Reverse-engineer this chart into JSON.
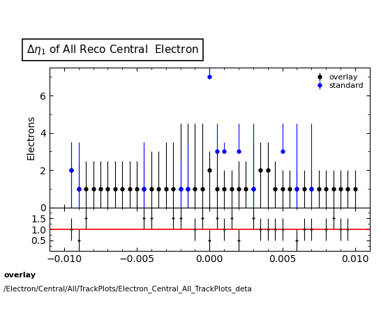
{
  "title": "$\\Delta\\eta_1$ of All Reco Central  Electron",
  "ylabel_main": "Electrons",
  "xlim": [
    -0.011,
    0.011
  ],
  "ylim_main": [
    0,
    7.5
  ],
  "ylim_ratio": [
    0.0,
    2.0
  ],
  "ratio_yticks": [
    0.5,
    1.0,
    1.5
  ],
  "overlay_color": "black",
  "standard_color": "blue",
  "footnote_bold": "overlay",
  "footnote_path": "/Electron/Central/All/TrackPlots/Electron_Central_All_TrackPlots_deta",
  "legend_entries": [
    "overlay",
    "standard"
  ],
  "overlay_x": [
    -0.0095,
    -0.0085,
    -0.0075,
    -0.0065,
    -0.0055,
    -0.0045,
    -0.0035,
    -0.0025,
    -0.0015,
    -0.0005,
    0.0005,
    0.0015,
    0.0025,
    0.0035,
    0.0045,
    0.0055,
    0.0065,
    0.0075,
    0.0085,
    0.0095,
    -0.009,
    -0.008,
    -0.007,
    -0.006,
    -0.005,
    -0.004,
    -0.003,
    -0.002,
    -0.001,
    0.0,
    0.001,
    0.002,
    0.003,
    0.004,
    0.005,
    0.006,
    0.007,
    0.008,
    0.009,
    0.01
  ],
  "overlay_y": [
    2,
    1,
    1,
    1,
    1,
    1,
    1,
    1,
    1,
    1,
    1,
    1,
    1,
    2,
    1,
    1,
    1,
    1,
    1,
    1,
    1,
    1,
    1,
    1,
    1,
    1,
    1,
    1,
    1,
    2,
    1,
    1,
    1,
    2,
    1,
    1,
    1,
    1,
    1,
    1
  ],
  "overlay_yerr_lo": [
    2.0,
    1.0,
    1.0,
    1.0,
    1.0,
    1.0,
    1.0,
    1.0,
    1.0,
    1.0,
    1.0,
    1.0,
    1.0,
    2.0,
    1.0,
    1.0,
    1.0,
    1.0,
    1.0,
    1.0,
    1.0,
    1.0,
    1.0,
    1.0,
    1.0,
    1.0,
    1.0,
    1.0,
    1.0,
    2.0,
    1.0,
    1.0,
    1.0,
    2.0,
    1.0,
    1.0,
    1.0,
    1.0,
    1.0,
    1.0
  ],
  "overlay_yerr_hi": [
    1.5,
    1.5,
    1.5,
    1.5,
    1.5,
    1.5,
    2.0,
    2.5,
    3.5,
    3.5,
    2.0,
    1.0,
    1.5,
    1.5,
    1.5,
    1.0,
    1.0,
    1.0,
    1.0,
    1.0,
    1.5,
    1.5,
    1.5,
    1.5,
    1.5,
    2.0,
    2.5,
    3.5,
    3.5,
    1.0,
    1.0,
    1.5,
    2.5,
    1.5,
    1.0,
    1.0,
    1.0,
    1.0,
    1.0,
    1.0
  ],
  "standard_x": [
    -0.0095,
    -0.009,
    -0.0045,
    -0.002,
    -0.0015,
    0.0,
    0.0005,
    0.001,
    0.002,
    0.003,
    0.005,
    0.006,
    0.007
  ],
  "standard_y": [
    2,
    1,
    1,
    1,
    1,
    7,
    3,
    3,
    3,
    1,
    3,
    1,
    1
  ],
  "standard_yerr_lo": [
    2.0,
    1.0,
    1.0,
    1.0,
    1.0,
    0.0,
    0.0,
    0.0,
    0.0,
    1.0,
    0.0,
    1.0,
    1.0
  ],
  "standard_yerr_hi": [
    1.5,
    2.5,
    2.5,
    1.5,
    2.5,
    0.5,
    1.5,
    0.5,
    1.5,
    3.5,
    1.5,
    3.5,
    3.5
  ],
  "ratio_x": [
    -0.0095,
    -0.009,
    -0.0085,
    -0.0045,
    -0.004,
    -0.0025,
    -0.002,
    -0.001,
    -0.0005,
    0.0,
    0.0005,
    0.001,
    0.0015,
    0.002,
    0.003,
    0.0035,
    0.004,
    0.0045,
    0.005,
    0.006,
    0.0065,
    0.007,
    0.008,
    0.0085,
    0.009,
    0.0095
  ],
  "ratio_y": [
    1.0,
    0.5,
    1.5,
    1.5,
    1.5,
    1.5,
    1.5,
    1.0,
    1.5,
    0.5,
    1.5,
    1.0,
    1.5,
    0.5,
    1.5,
    1.0,
    1.0,
    1.0,
    1.0,
    0.5,
    1.0,
    1.0,
    1.0,
    1.5,
    1.0,
    1.0
  ],
  "ratio_yerr_lo": [
    0.5,
    0.5,
    0.5,
    0.5,
    0.5,
    0.5,
    0.5,
    0.5,
    0.5,
    0.5,
    0.5,
    0.5,
    0.5,
    0.5,
    0.5,
    0.5,
    0.5,
    0.5,
    0.5,
    0.5,
    0.5,
    0.5,
    0.5,
    0.5,
    0.5,
    0.5
  ],
  "ratio_yerr_hi": [
    0.5,
    0.5,
    0.5,
    0.5,
    0.5,
    0.5,
    0.5,
    0.5,
    0.5,
    0.5,
    0.5,
    0.5,
    0.5,
    0.5,
    0.5,
    0.5,
    0.5,
    0.5,
    0.5,
    0.5,
    0.5,
    0.5,
    0.5,
    0.5,
    0.5,
    0.5
  ]
}
